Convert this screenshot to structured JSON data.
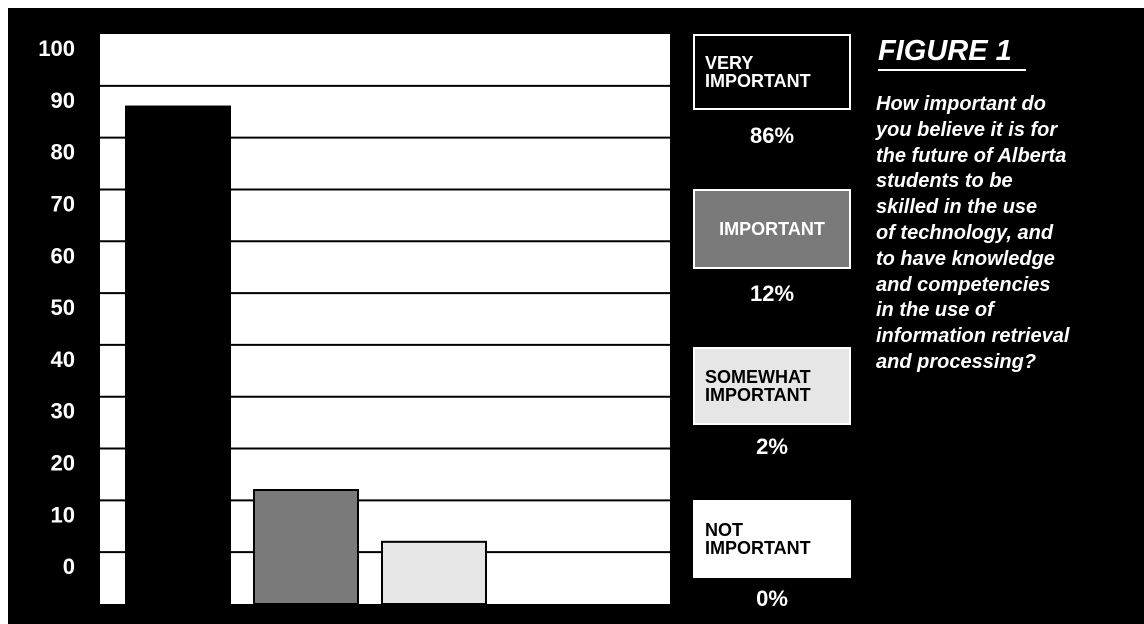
{
  "figure_label": "FIGURE 1",
  "question": "How important do\nyou believe it is for\nthe future of Alberta\nstudents to be\nskilled in the use\nof technology, and\nto have knowledge\nand competencies\nin the use of\ninformation retrieval\nand processing?",
  "legend": [
    {
      "label": "VERY\nIMPORTANT",
      "pct": "86%",
      "color": "#000000"
    },
    {
      "label": "IMPORTANT",
      "pct": "12%",
      "color": "#7a7a7a"
    },
    {
      "label": "SOMEWHAT\nIMPORTANT",
      "pct": "2%",
      "color": "#e6e6e6"
    },
    {
      "label": "NOT\nIMPORTANT",
      "pct": "0%",
      "color": "#ffffff"
    }
  ],
  "chart_data": {
    "type": "bar",
    "categories": [
      "VERY IMPORTANT",
      "IMPORTANT",
      "SOMEWHAT IMPORTANT",
      "NOT IMPORTANT"
    ],
    "values": [
      86,
      12,
      2,
      0
    ],
    "colors": [
      "#000000",
      "#7a7a7a",
      "#e6e6e6",
      "#ffffff"
    ],
    "yticks": [
      "100",
      "90",
      "80",
      "70",
      "60",
      "50",
      "40",
      "30",
      "20",
      "10",
      "0"
    ],
    "ylim": [
      -10,
      100
    ],
    "grid": true
  }
}
